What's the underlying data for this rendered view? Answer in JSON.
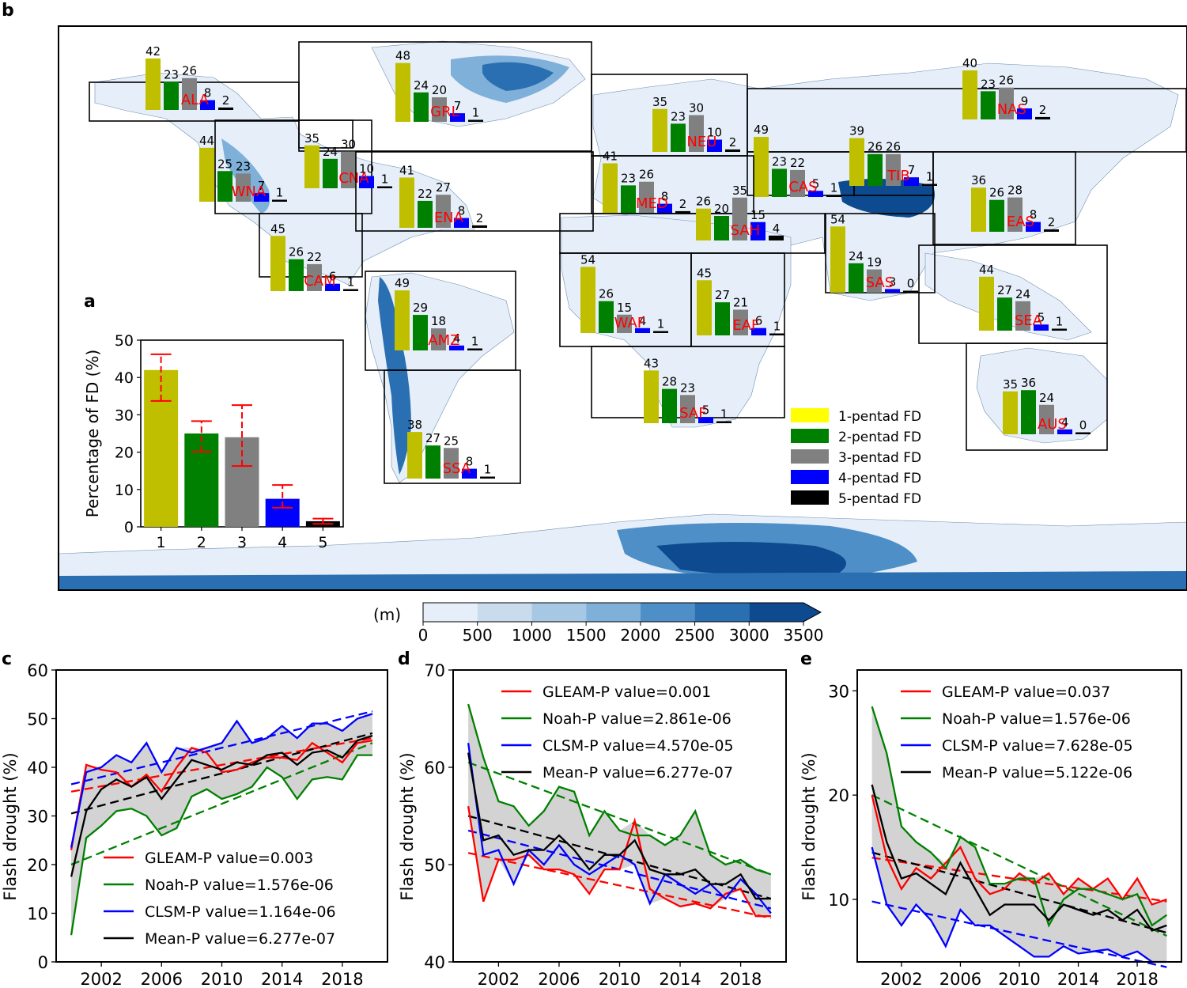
{
  "panel_letters": {
    "a": "a",
    "b": "b",
    "c": "c",
    "d": "d",
    "e": "e"
  },
  "colors": {
    "pentad": [
      "#bfbf00",
      "#008000",
      "#808080",
      "#0000ff",
      "#000000"
    ],
    "legend_swatch_1": "#ffff00",
    "gleam": "#ff0000",
    "noah": "#008000",
    "clsm": "#0000ff",
    "mean": "#000000",
    "error": "#ff0000",
    "region_label": "#ff0000",
    "colorbar": [
      "#e6eff9",
      "#c9dcee",
      "#a7c8e4",
      "#7fb0da",
      "#4e8fc7",
      "#2a6fb1",
      "#0d4a8f"
    ]
  },
  "chart_data": [
    {
      "id": "panel_a",
      "type": "bar",
      "title": "",
      "ylabel": "Percentage of FD (%)",
      "xlabel": "",
      "categories": [
        "1",
        "2",
        "3",
        "4",
        "5"
      ],
      "values": [
        42,
        25,
        24,
        7.5,
        1.5
      ],
      "errors_low": [
        33.7,
        20.1,
        16.3,
        5.1,
        0.8
      ],
      "errors_high": [
        46.2,
        28.3,
        32.6,
        11.2,
        2.2
      ],
      "ylim": [
        0,
        50
      ],
      "yticks": [
        "0",
        "10",
        "20",
        "30",
        "40",
        "50"
      ]
    },
    {
      "id": "panel_b",
      "type": "bar",
      "title": "",
      "colorbar_unit": "(m)",
      "colorbar_ticks": [
        "0",
        "500",
        "1000",
        "1500",
        "2000",
        "2500",
        "3000",
        "3500"
      ],
      "legend": [
        "1-pentad FD",
        "2-pentad FD",
        "3-pentad FD",
        "4-pentad FD",
        "5-pentad FD"
      ],
      "regions": [
        {
          "name": "ALA",
          "values": [
            42,
            23,
            26,
            8,
            2
          ]
        },
        {
          "name": "GRL",
          "values": [
            48,
            24,
            20,
            7,
            1
          ]
        },
        {
          "name": "NEU",
          "values": [
            35,
            23,
            30,
            10,
            2
          ]
        },
        {
          "name": "NAS",
          "values": [
            40,
            23,
            26,
            9,
            2
          ]
        },
        {
          "name": "WNA",
          "values": [
            44,
            25,
            23,
            7,
            1
          ]
        },
        {
          "name": "CNA",
          "values": [
            35,
            24,
            30,
            10,
            1
          ]
        },
        {
          "name": "ENA",
          "values": [
            41,
            22,
            27,
            8,
            2
          ]
        },
        {
          "name": "CAS",
          "values": [
            49,
            23,
            22,
            5,
            1
          ]
        },
        {
          "name": "TIB",
          "values": [
            39,
            26,
            26,
            7,
            1
          ]
        },
        {
          "name": "MED",
          "values": [
            41,
            23,
            26,
            8,
            2
          ]
        },
        {
          "name": "SAH",
          "values": [
            26,
            20,
            35,
            15,
            4
          ]
        },
        {
          "name": "EAS",
          "values": [
            36,
            26,
            28,
            8,
            2
          ]
        },
        {
          "name": "CAM",
          "values": [
            45,
            26,
            22,
            6,
            1
          ]
        },
        {
          "name": "SAS",
          "values": [
            54,
            24,
            19,
            3,
            0
          ]
        },
        {
          "name": "AMZ",
          "values": [
            49,
            29,
            18,
            4,
            1
          ]
        },
        {
          "name": "WAF",
          "values": [
            54,
            26,
            15,
            4,
            1
          ]
        },
        {
          "name": "EAF",
          "values": [
            45,
            27,
            21,
            6,
            1
          ]
        },
        {
          "name": "SEA",
          "values": [
            44,
            27,
            24,
            5,
            1
          ]
        },
        {
          "name": "SAF",
          "values": [
            43,
            28,
            23,
            5,
            1
          ]
        },
        {
          "name": "AUS",
          "values": [
            35,
            36,
            24,
            4,
            0
          ]
        },
        {
          "name": "SSA",
          "values": [
            38,
            27,
            25,
            8,
            1
          ]
        }
      ]
    },
    {
      "id": "panel_c",
      "type": "line",
      "ylabel": "Flash drought (%)",
      "xlabel": "",
      "ylim": [
        0,
        60
      ],
      "xlim": [
        1999,
        2021
      ],
      "yticks": [
        0,
        10,
        20,
        30,
        40,
        50,
        60
      ],
      "xticks": [
        2002,
        2006,
        2010,
        2014,
        2018
      ],
      "x": [
        2000,
        2001,
        2002,
        2003,
        2004,
        2005,
        2006,
        2007,
        2008,
        2009,
        2010,
        2011,
        2012,
        2013,
        2014,
        2015,
        2016,
        2017,
        2018,
        2019,
        2020
      ],
      "series": [
        {
          "name": "GLEAM",
          "label": "GLEAM-P value=0.003",
          "values": [
            23,
            40.5,
            39.5,
            39,
            36,
            38.5,
            35,
            40,
            44,
            43,
            39,
            39.5,
            41,
            42,
            42,
            41.5,
            45,
            43,
            41,
            45,
            45.5
          ],
          "trend": [
            35,
            46
          ]
        },
        {
          "name": "Noah",
          "label": "Noah-P value=1.576e-06",
          "values": [
            5.5,
            25.5,
            28,
            31,
            31.5,
            30,
            26,
            27.5,
            34,
            35.5,
            33.5,
            34.5,
            36,
            40,
            38,
            33.5,
            37.5,
            38,
            37.5,
            42.5,
            42.5
          ],
          "trend": [
            20,
            45
          ]
        },
        {
          "name": "CLSM",
          "label": "CLSM-P value=1.164e-06",
          "values": [
            23.5,
            39,
            40,
            42.5,
            41,
            45,
            39,
            44,
            43,
            44,
            45,
            49.5,
            45,
            46,
            48.5,
            46,
            49,
            49,
            47.5,
            50,
            51
          ],
          "trend": [
            36.5,
            51.5
          ]
        },
        {
          "name": "Mean",
          "label": "Mean-P value=6.277e-07",
          "values": [
            17.5,
            31,
            35.5,
            37.5,
            36,
            38,
            33.5,
            37.5,
            41.5,
            40.5,
            39.5,
            41,
            40.5,
            42.5,
            43,
            40.5,
            43,
            43.5,
            42,
            45.5,
            46.5
          ],
          "trend": [
            30.5,
            47
          ]
        }
      ]
    },
    {
      "id": "panel_d",
      "type": "line",
      "ylabel": "Flash drought (%)",
      "xlabel": "",
      "ylim": [
        40,
        70
      ],
      "xlim": [
        1999,
        2021
      ],
      "yticks": [
        40,
        50,
        60,
        70
      ],
      "xticks": [
        2002,
        2006,
        2010,
        2014,
        2018
      ],
      "x": [
        2000,
        2001,
        2002,
        2003,
        2004,
        2005,
        2006,
        2007,
        2008,
        2009,
        2010,
        2011,
        2012,
        2013,
        2014,
        2015,
        2016,
        2017,
        2018,
        2019,
        2020
      ],
      "series": [
        {
          "name": "GLEAM",
          "label": "GLEAM-P value=0.001",
          "values": [
            56,
            46.2,
            50.5,
            50.5,
            51,
            49.5,
            49.5,
            49,
            47,
            49.5,
            49.5,
            54.5,
            47.5,
            46.5,
            45.7,
            46,
            45.5,
            47,
            47.5,
            44.7,
            44.7
          ],
          "trend": [
            51.2,
            44.5
          ]
        },
        {
          "name": "Noah",
          "label": "Noah-P value=2.861e-06",
          "values": [
            66.5,
            61,
            56.5,
            56,
            54,
            55.5,
            58,
            57.5,
            53,
            55.5,
            53.5,
            53,
            53,
            52,
            53,
            55.5,
            51,
            50,
            50.5,
            49.5,
            49
          ],
          "trend": [
            60.5,
            49
          ]
        },
        {
          "name": "CLSM",
          "label": "CLSM-P value=4.570e-05",
          "values": [
            62.5,
            51,
            51.5,
            48,
            51.5,
            50,
            52,
            50,
            49,
            50,
            51,
            50,
            46,
            49,
            48,
            47,
            48,
            46.5,
            48.5,
            47,
            45
          ],
          "trend": [
            53.5,
            45.5
          ]
        },
        {
          "name": "Mean",
          "label": "Mean-P value=6.277e-07",
          "values": [
            61.5,
            52.5,
            53,
            51,
            51.5,
            51.5,
            53,
            51.5,
            49.5,
            51,
            51,
            52.5,
            49.5,
            49,
            49,
            49.5,
            48,
            48,
            49,
            46.5,
            46.5
          ],
          "trend": [
            55,
            46.5
          ]
        }
      ]
    },
    {
      "id": "panel_e",
      "type": "line",
      "ylabel": "Flash drought (%)",
      "xlabel": "",
      "ylim": [
        4,
        32
      ],
      "xlim": [
        1999,
        2021
      ],
      "yticks": [
        10,
        20,
        30
      ],
      "xticks": [
        2002,
        2006,
        2010,
        2014,
        2018
      ],
      "x": [
        2000,
        2001,
        2002,
        2003,
        2004,
        2005,
        2006,
        2007,
        2008,
        2009,
        2010,
        2011,
        2012,
        2013,
        2014,
        2015,
        2016,
        2017,
        2018,
        2019,
        2020
      ],
      "series": [
        {
          "name": "GLEAM",
          "label": "GLEAM-P value=0.037",
          "values": [
            20,
            14,
            11,
            13,
            12,
            13.5,
            15,
            12,
            10.5,
            11,
            12.5,
            11.5,
            12.5,
            10.5,
            12,
            11,
            12,
            10,
            12,
            9.5,
            10
          ],
          "trend": [
            14,
            9.8
          ]
        },
        {
          "name": "Noah",
          "label": "Noah-P value=1.576e-06",
          "values": [
            28.5,
            24,
            17,
            15.5,
            14.5,
            13,
            16,
            15,
            11.5,
            11.5,
            12,
            12,
            7.5,
            10,
            11,
            11,
            10.5,
            10,
            10.5,
            7.5,
            8.5
          ],
          "trend": [
            20,
            6.5
          ]
        },
        {
          "name": "CLSM",
          "label": "CLSM-P value=7.628e-05",
          "values": [
            15,
            9.5,
            7.5,
            9.5,
            8,
            5.5,
            9,
            7.5,
            7.5,
            6.5,
            5.5,
            4.5,
            4.5,
            5.5,
            4.8,
            5,
            5.2,
            4.5,
            5,
            4,
            4
          ],
          "trend": [
            9.8,
            3.5
          ]
        },
        {
          "name": "Mean",
          "label": "Mean-P value=5.122e-06",
          "values": [
            21,
            15.5,
            12,
            12.5,
            11.5,
            10.5,
            13.5,
            11,
            8.5,
            9.5,
            9.5,
            9.5,
            8,
            9.5,
            9,
            8.5,
            9,
            8,
            9,
            7,
            7.5
          ],
          "trend": [
            14.5,
            6.8
          ]
        }
      ]
    }
  ]
}
